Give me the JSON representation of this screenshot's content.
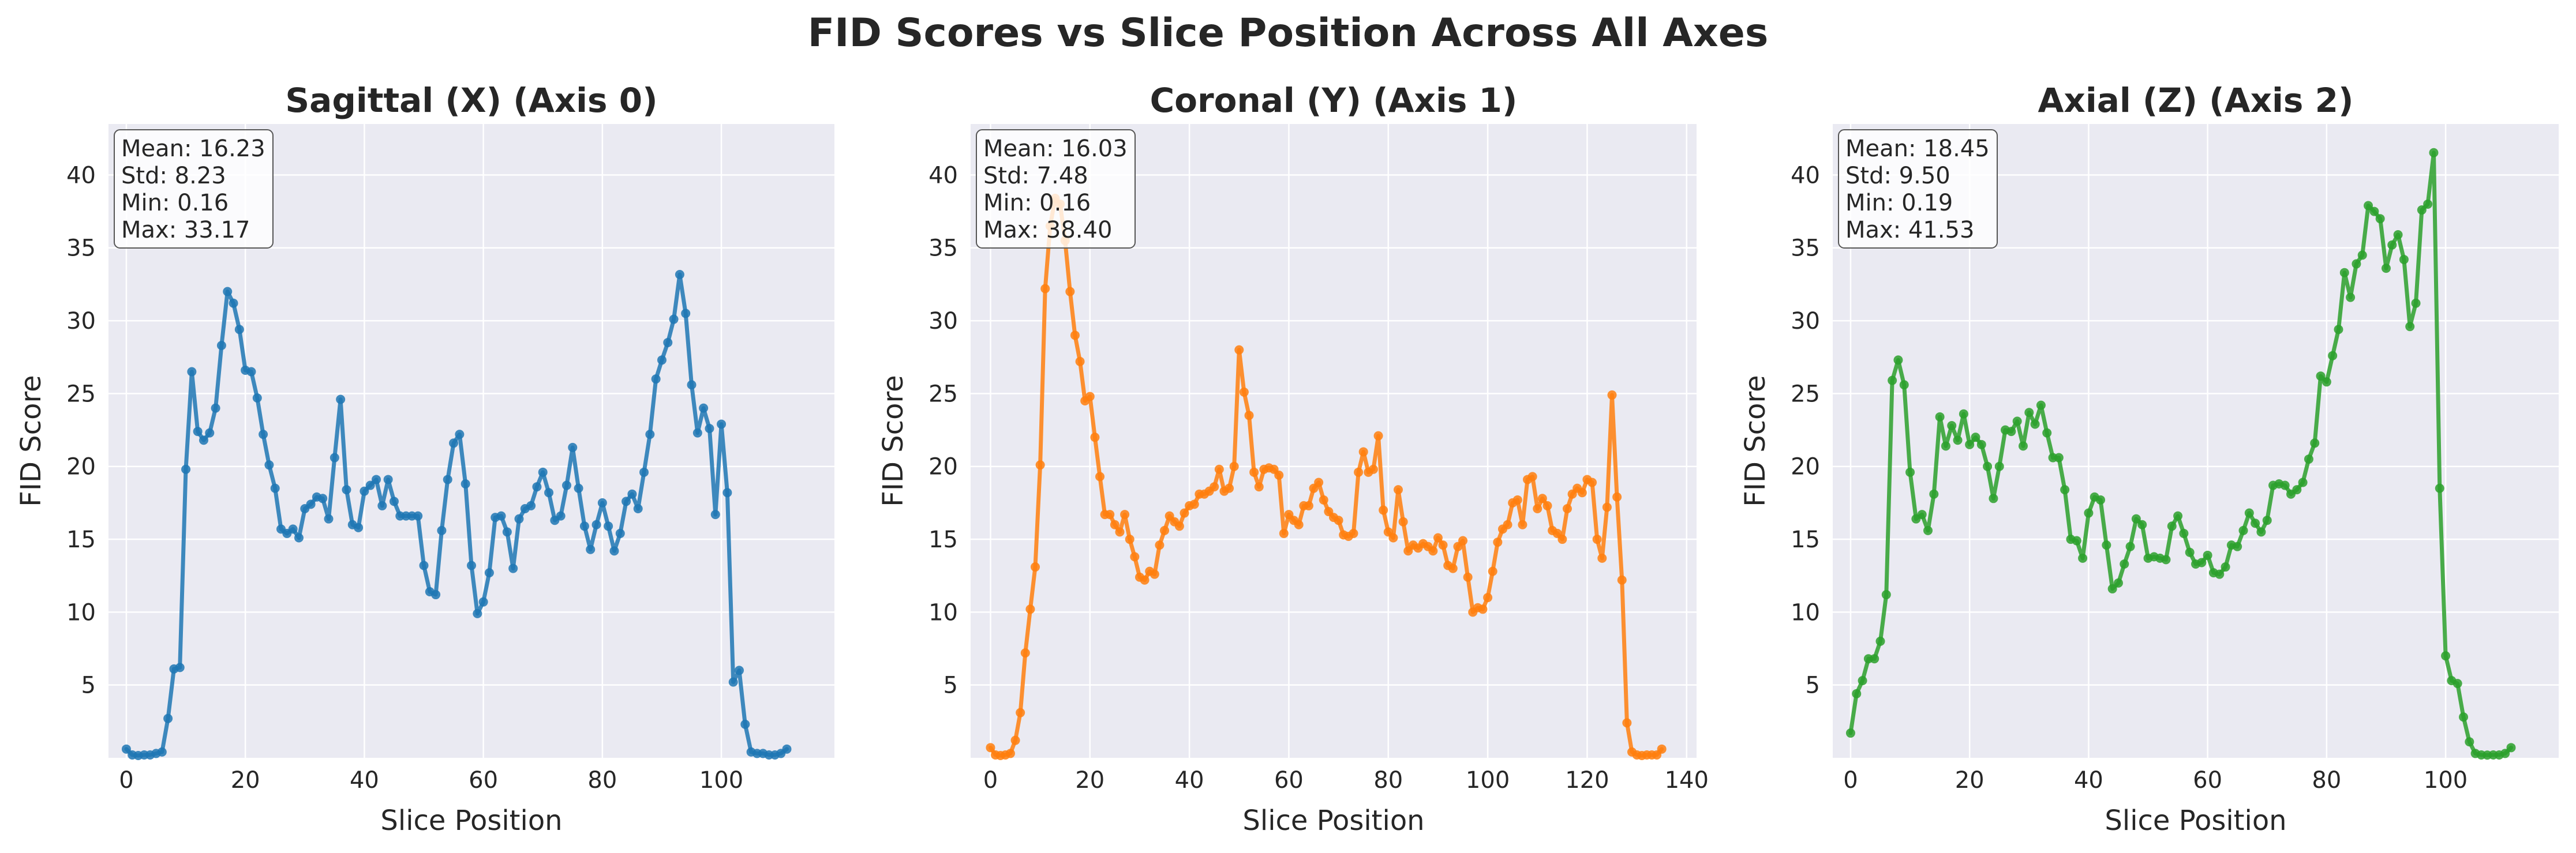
{
  "figure": {
    "title": "FID Scores vs Slice Position Across All Axes"
  },
  "chart_data": [
    {
      "type": "line",
      "title": "Sagittal (X) (Axis 0)",
      "xlabel": "Slice Position",
      "ylabel": "FID Score",
      "xlim": [
        -3,
        119
      ],
      "ylim": [
        0,
        43.5
      ],
      "xticks": [
        0,
        20,
        40,
        60,
        80,
        100
      ],
      "yticks": [
        5,
        10,
        15,
        20,
        25,
        30,
        35,
        40
      ],
      "grid": true,
      "color": "#1f77b4",
      "stats": [
        "Mean: 16.23",
        "Std: 8.23",
        "Min: 0.16",
        "Max: 33.17"
      ],
      "x": [
        0,
        1,
        2,
        3,
        4,
        5,
        6,
        7,
        8,
        9,
        10,
        11,
        12,
        13,
        14,
        15,
        16,
        17,
        18,
        19,
        20,
        21,
        22,
        23,
        24,
        25,
        26,
        27,
        28,
        29,
        30,
        31,
        32,
        33,
        34,
        35,
        36,
        37,
        38,
        39,
        40,
        41,
        42,
        43,
        44,
        45,
        46,
        47,
        48,
        49,
        50,
        51,
        52,
        53,
        54,
        55,
        56,
        57,
        58,
        59,
        60,
        61,
        62,
        63,
        64,
        65,
        66,
        67,
        68,
        69,
        70,
        71,
        72,
        73,
        74,
        75,
        76,
        77,
        78,
        79,
        80,
        81,
        82,
        83,
        84,
        85,
        86,
        87,
        88,
        89,
        90,
        91,
        92,
        93,
        94,
        95,
        96,
        97,
        98,
        99,
        100,
        101,
        102,
        103,
        104,
        105,
        106,
        107,
        108,
        109,
        110,
        111
      ],
      "y": [
        0.6,
        0.2,
        0.16,
        0.2,
        0.2,
        0.3,
        0.4,
        2.7,
        6.1,
        6.2,
        19.8,
        26.5,
        22.4,
        21.8,
        22.3,
        24.0,
        28.3,
        32.0,
        31.2,
        29.4,
        26.6,
        26.5,
        24.7,
        22.2,
        20.1,
        18.5,
        15.7,
        15.4,
        15.7,
        15.1,
        17.1,
        17.4,
        17.9,
        17.8,
        16.4,
        20.6,
        24.6,
        18.4,
        16.0,
        15.8,
        18.3,
        18.7,
        19.1,
        17.3,
        19.1,
        17.6,
        16.6,
        16.6,
        16.6,
        16.6,
        13.2,
        11.4,
        11.2,
        15.6,
        19.1,
        21.6,
        22.2,
        18.8,
        13.2,
        9.9,
        10.7,
        12.7,
        16.5,
        16.6,
        15.5,
        13.0,
        16.4,
        17.1,
        17.3,
        18.6,
        19.6,
        18.2,
        16.3,
        16.6,
        18.7,
        21.3,
        18.5,
        15.9,
        14.3,
        16.0,
        17.5,
        15.9,
        14.2,
        15.4,
        17.6,
        18.1,
        17.1,
        19.6,
        22.2,
        26.0,
        27.3,
        28.5,
        30.1,
        33.17,
        30.5,
        25.6,
        22.3,
        24.0,
        22.6,
        16.7,
        22.9,
        18.2,
        5.2,
        6.0,
        2.3,
        0.4,
        0.3,
        0.3,
        0.2,
        0.2,
        0.3,
        0.6
      ]
    },
    {
      "type": "line",
      "title": "Coronal (Y) (Axis 1)",
      "xlabel": "Slice Position",
      "ylabel": "FID Score",
      "xlim": [
        -4,
        142
      ],
      "ylim": [
        0,
        43.5
      ],
      "xticks": [
        0,
        20,
        40,
        60,
        80,
        100,
        120,
        140
      ],
      "yticks": [
        5,
        10,
        15,
        20,
        25,
        30,
        35,
        40
      ],
      "grid": true,
      "color": "#ff7f0e",
      "stats": [
        "Mean: 16.03",
        "Std: 7.48",
        "Min: 0.16",
        "Max: 38.40"
      ],
      "x": [
        0,
        1,
        2,
        3,
        4,
        5,
        6,
        7,
        8,
        9,
        10,
        11,
        12,
        13,
        14,
        15,
        16,
        17,
        18,
        19,
        20,
        21,
        22,
        23,
        24,
        25,
        26,
        27,
        28,
        29,
        30,
        31,
        32,
        33,
        34,
        35,
        36,
        37,
        38,
        39,
        40,
        41,
        42,
        43,
        44,
        45,
        46,
        47,
        48,
        49,
        50,
        51,
        52,
        53,
        54,
        55,
        56,
        57,
        58,
        59,
        60,
        61,
        62,
        63,
        64,
        65,
        66,
        67,
        68,
        69,
        70,
        71,
        72,
        73,
        74,
        75,
        76,
        77,
        78,
        79,
        80,
        81,
        82,
        83,
        84,
        85,
        86,
        87,
        88,
        89,
        90,
        91,
        92,
        93,
        94,
        95,
        96,
        97,
        98,
        99,
        100,
        101,
        102,
        103,
        104,
        105,
        106,
        107,
        108,
        109,
        110,
        111,
        112,
        113,
        114,
        115,
        116,
        117,
        118,
        119,
        120,
        121,
        122,
        123,
        124,
        125,
        126,
        127,
        128,
        129,
        130,
        131,
        132,
        133,
        134,
        135
      ],
      "y": [
        0.7,
        0.2,
        0.16,
        0.2,
        0.3,
        1.2,
        3.1,
        7.2,
        10.2,
        13.1,
        20.1,
        32.2,
        36.5,
        38.4,
        38.0,
        35.5,
        32.0,
        29.0,
        27.2,
        24.5,
        24.8,
        22.0,
        19.3,
        16.7,
        16.7,
        16.0,
        15.5,
        16.7,
        15.0,
        13.8,
        12.4,
        12.2,
        12.8,
        12.6,
        14.6,
        15.6,
        16.6,
        16.2,
        15.9,
        16.8,
        17.3,
        17.4,
        18.1,
        18.1,
        18.3,
        18.6,
        19.8,
        18.3,
        18.5,
        20.0,
        28.0,
        25.1,
        23.5,
        19.6,
        18.6,
        19.8,
        19.9,
        19.8,
        19.4,
        15.4,
        16.7,
        16.3,
        16.0,
        17.3,
        17.3,
        18.5,
        18.9,
        17.7,
        16.9,
        16.5,
        16.3,
        15.3,
        15.2,
        15.4,
        19.6,
        21.0,
        19.6,
        19.8,
        22.1,
        17.0,
        15.5,
        15.1,
        18.4,
        16.2,
        14.2,
        14.6,
        14.4,
        14.7,
        14.5,
        14.2,
        15.1,
        14.6,
        13.2,
        13.0,
        14.5,
        14.9,
        12.4,
        10.0,
        10.3,
        10.2,
        11.0,
        12.8,
        14.8,
        15.7,
        16.0,
        17.5,
        17.7,
        16.0,
        19.1,
        19.3,
        17.1,
        17.8,
        17.3,
        15.6,
        15.4,
        15.0,
        17.1,
        18.1,
        18.5,
        18.2,
        19.1,
        18.9,
        15.0,
        13.7,
        17.2,
        24.9,
        17.9,
        12.2,
        2.4,
        0.4,
        0.2,
        0.16,
        0.2,
        0.2,
        0.2,
        0.6
      ]
    },
    {
      "type": "line",
      "title": "Axial (Z) (Axis 2)",
      "xlabel": "Slice Position",
      "ylabel": "FID Score",
      "xlim": [
        -3,
        119
      ],
      "ylim": [
        0,
        43.5
      ],
      "xticks": [
        0,
        20,
        40,
        60,
        80,
        100
      ],
      "yticks": [
        5,
        10,
        15,
        20,
        25,
        30,
        35,
        40
      ],
      "grid": true,
      "color": "#2ca02c",
      "stats": [
        "Mean: 18.45",
        "Std: 9.50",
        "Min: 0.19",
        "Max: 41.53"
      ],
      "x": [
        0,
        1,
        2,
        3,
        4,
        5,
        6,
        7,
        8,
        9,
        10,
        11,
        12,
        13,
        14,
        15,
        16,
        17,
        18,
        19,
        20,
        21,
        22,
        23,
        24,
        25,
        26,
        27,
        28,
        29,
        30,
        31,
        32,
        33,
        34,
        35,
        36,
        37,
        38,
        39,
        40,
        41,
        42,
        43,
        44,
        45,
        46,
        47,
        48,
        49,
        50,
        51,
        52,
        53,
        54,
        55,
        56,
        57,
        58,
        59,
        60,
        61,
        62,
        63,
        64,
        65,
        66,
        67,
        68,
        69,
        70,
        71,
        72,
        73,
        74,
        75,
        76,
        77,
        78,
        79,
        80,
        81,
        82,
        83,
        84,
        85,
        86,
        87,
        88,
        89,
        90,
        91,
        92,
        93,
        94,
        95,
        96,
        97,
        98,
        99,
        100,
        101,
        102,
        103,
        104,
        105,
        106,
        107,
        108,
        109,
        110,
        111
      ],
      "y": [
        1.7,
        4.4,
        5.3,
        6.8,
        6.8,
        8.0,
        11.2,
        25.9,
        27.3,
        25.6,
        19.6,
        16.4,
        16.7,
        15.6,
        18.1,
        23.4,
        21.4,
        22.8,
        21.8,
        23.6,
        21.5,
        22.0,
        21.5,
        20.0,
        17.8,
        20.0,
        22.5,
        22.4,
        23.1,
        21.4,
        23.7,
        22.9,
        24.2,
        22.3,
        20.6,
        20.6,
        18.4,
        15.0,
        14.9,
        13.7,
        16.8,
        17.9,
        17.7,
        14.6,
        11.6,
        12.0,
        13.3,
        14.5,
        16.4,
        16.0,
        13.7,
        13.8,
        13.7,
        13.6,
        15.9,
        16.6,
        15.4,
        14.1,
        13.3,
        13.4,
        13.9,
        12.7,
        12.6,
        13.1,
        14.6,
        14.5,
        15.6,
        16.8,
        16.1,
        15.5,
        16.3,
        18.7,
        18.8,
        18.7,
        18.1,
        18.4,
        18.9,
        20.5,
        21.6,
        26.2,
        25.8,
        27.6,
        29.4,
        33.3,
        31.6,
        33.9,
        34.5,
        37.9,
        37.5,
        37.0,
        33.6,
        35.2,
        35.9,
        34.2,
        29.6,
        31.2,
        37.6,
        38.0,
        41.53,
        18.5,
        7.0,
        5.3,
        5.1,
        2.8,
        1.1,
        0.3,
        0.2,
        0.19,
        0.2,
        0.2,
        0.3,
        0.7
      ]
    }
  ]
}
